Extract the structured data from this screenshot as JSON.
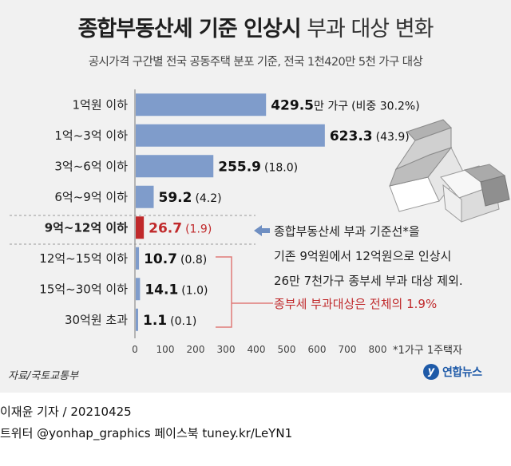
{
  "header": {
    "title_bold": "종합부동산세 기준 인상시",
    "title_light": "부과 대상 변화",
    "subtitle": "공시가격 구간별 전국 공동주택 분포 기준, 전국 1천420만 5천 가구 대상"
  },
  "chart_data": {
    "type": "bar",
    "orientation": "horizontal",
    "categories": [
      "1억원 이하",
      "1억~3억 이하",
      "3억~6억 이하",
      "6억~9억 이하",
      "9억~12억 이하",
      "12억~15억 이하",
      "15억~30억 이하",
      "30억원 초과"
    ],
    "values": [
      429.5,
      623.3,
      255.9,
      59.2,
      26.7,
      10.7,
      14.1,
      1.1
    ],
    "shares": [
      "(비중 30.2%)",
      "(43.9)",
      "(18.0)",
      "(4.2)",
      "(1.9)",
      "(0.8)",
      "(1.0)",
      "(0.1)"
    ],
    "first_unit": "만 가구",
    "highlight_index": 4,
    "xlim": [
      0,
      800
    ],
    "xticks": [
      "0",
      "100",
      "200",
      "300",
      "400",
      "500",
      "600",
      "700",
      "800"
    ],
    "grid": false,
    "colors": {
      "bar": "#7f9ccb",
      "highlight": "#c0292b",
      "bracket": "#e07a78"
    }
  },
  "annotation": {
    "line1": "종합부동산세 부과 기준선*을",
    "line2": "기존 9억원에서 12억원으로 인상시",
    "line3": "26만 7천가구 종부세 부과 대상 제외.",
    "line4": "종부세 부과대상은  전체의 1.9%"
  },
  "footnote": "*1가구 1주택자",
  "source": "자료/국토교통부",
  "logo": {
    "mark": "y",
    "text": "연합뉴스"
  },
  "credits": {
    "line1": "이재윤 기자 / 20210425",
    "line2": "트위터 @yonhap_graphics  페이스북 tuney.kr/LeYN1"
  },
  "icons": [
    "houses-icon",
    "arrow-left-icon"
  ]
}
